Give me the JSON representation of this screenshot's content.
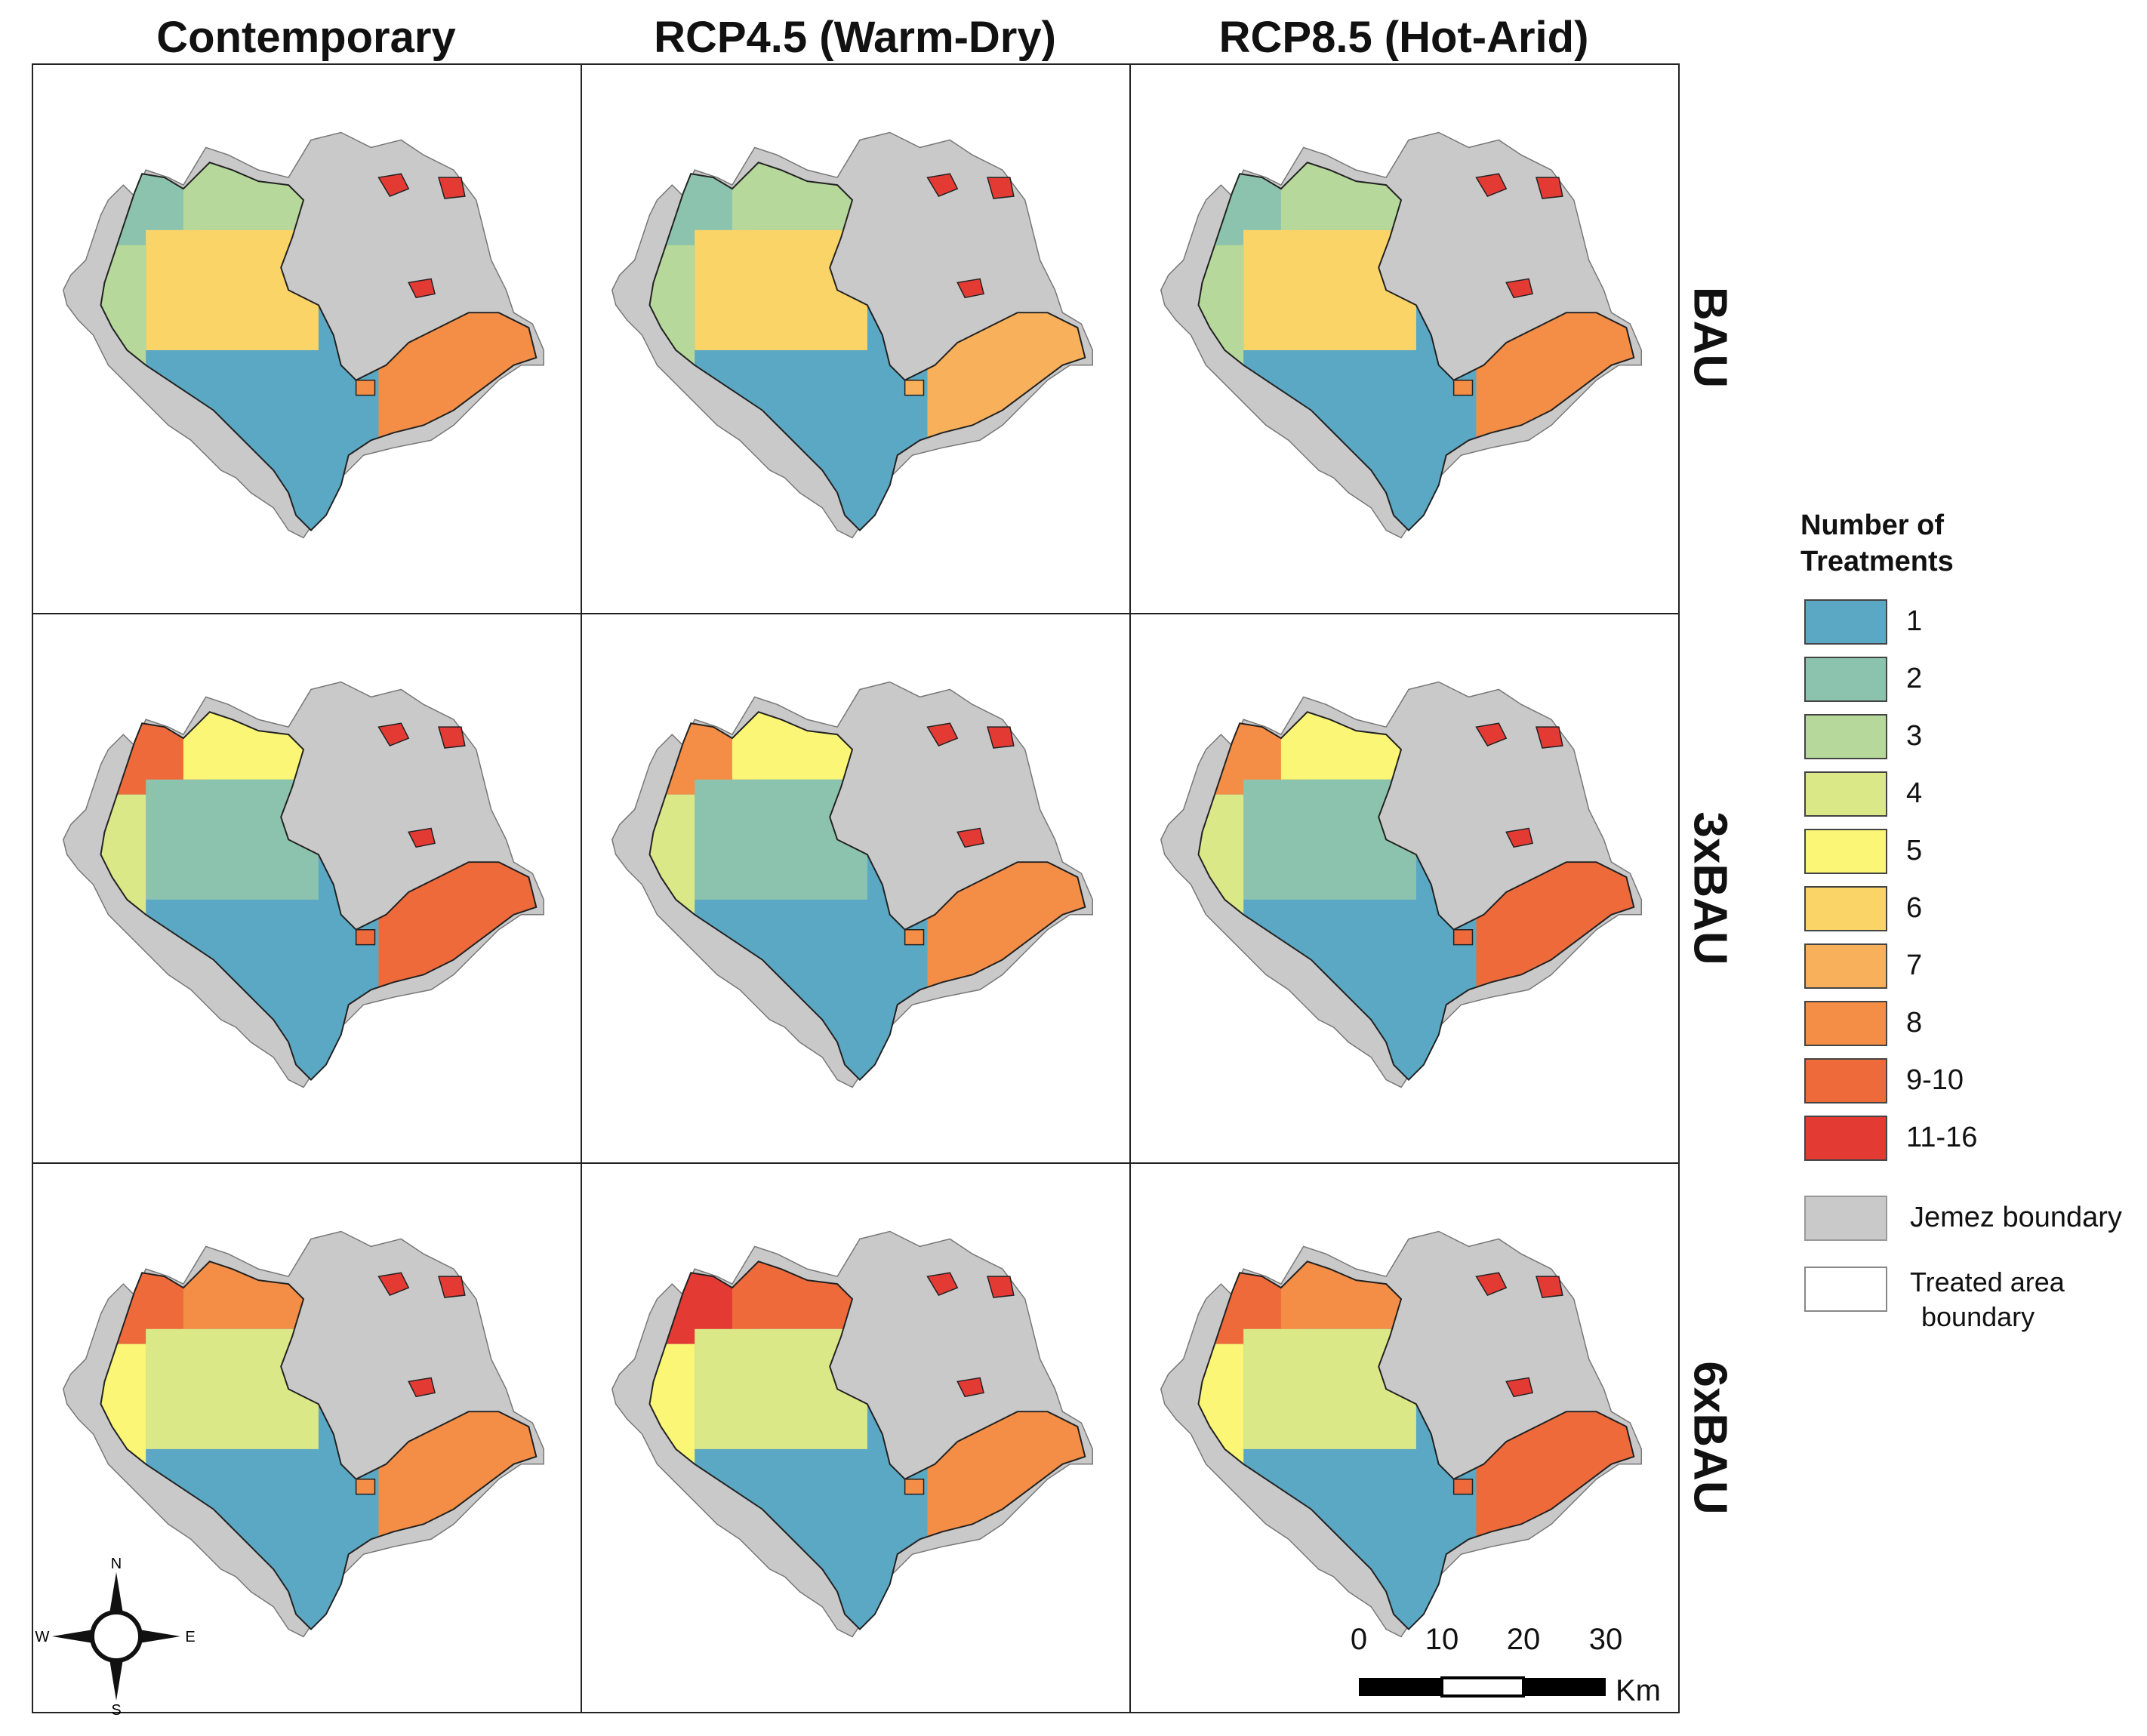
{
  "columns": [
    "Contemporary",
    "RCP4.5 (Warm-Dry)",
    "RCP8.5 (Hot-Arid)"
  ],
  "rows": [
    "BAU",
    "3xBAU",
    "6xBAU"
  ],
  "legend": {
    "title_line1": "Number of",
    "title_line2": "Treatments",
    "classes": [
      {
        "label": "1",
        "color": "#5ba8c4"
      },
      {
        "label": "2",
        "color": "#8cc3ae"
      },
      {
        "label": "3",
        "color": "#b6d89a"
      },
      {
        "label": "4",
        "color": "#dbe888"
      },
      {
        "label": "5",
        "color": "#fbf675"
      },
      {
        "label": "6",
        "color": "#fbd468"
      },
      {
        "label": "7",
        "color": "#f8b05a"
      },
      {
        "label": "8",
        "color": "#f48d45"
      },
      {
        "label": "9-10",
        "color": "#ee6a3a"
      },
      {
        "label": "11-16",
        "color": "#e33a34"
      }
    ],
    "jemez": {
      "label": "Jemez boundary",
      "color": "#c9c9c9"
    },
    "treated": {
      "label_line1": "Treated area",
      "label_line2": "boundary",
      "color": "#ffffff"
    }
  },
  "compass": {
    "n": "N",
    "s": "S",
    "e": "E",
    "w": "W"
  },
  "scale": {
    "ticks": [
      "0",
      "10",
      "20",
      "30"
    ],
    "unit": "Km"
  },
  "panel_levels": [
    [
      [
        0.15,
        0.2,
        0.6,
        0.25,
        0.8
      ],
      [
        0.15,
        0.2,
        0.5,
        0.2,
        0.7
      ],
      [
        0.15,
        0.25,
        0.55,
        0.25,
        0.75
      ]
    ],
    [
      [
        0.85,
        0.45,
        0.15,
        0.35,
        0.85
      ],
      [
        0.8,
        0.45,
        0.15,
        0.3,
        0.8
      ],
      [
        0.8,
        0.45,
        0.15,
        0.3,
        0.85
      ]
    ],
    [
      [
        0.9,
        0.75,
        0.3,
        0.45,
        0.8
      ],
      [
        0.95,
        0.85,
        0.3,
        0.4,
        0.8
      ],
      [
        0.9,
        0.8,
        0.3,
        0.45,
        0.85
      ]
    ]
  ]
}
